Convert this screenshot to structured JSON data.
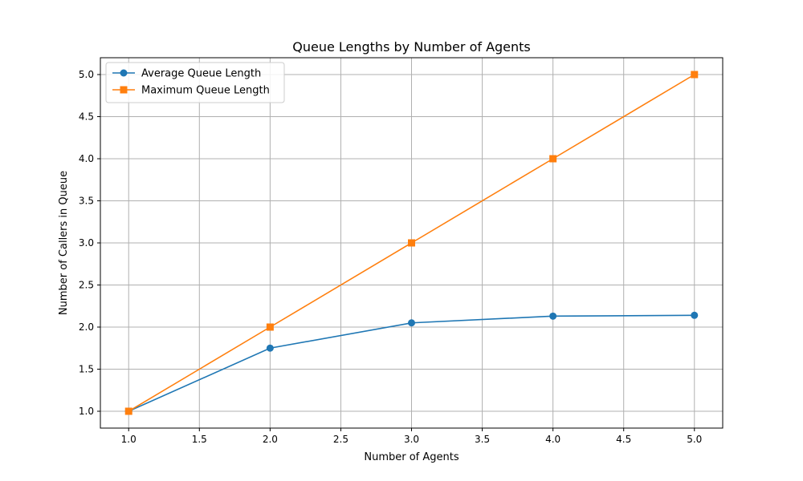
{
  "chart_data": {
    "type": "line",
    "title": "Queue Lengths by Number of Agents",
    "xlabel": "Number of Agents",
    "ylabel": "Number of Callers in Queue",
    "xlim": [
      0.8,
      5.2
    ],
    "ylim": [
      0.8,
      5.2
    ],
    "xticks": [
      "1.0",
      "1.5",
      "2.0",
      "2.5",
      "3.0",
      "3.5",
      "4.0",
      "4.5",
      "5.0"
    ],
    "yticks": [
      "1.0",
      "1.5",
      "2.0",
      "2.5",
      "3.0",
      "3.5",
      "4.0",
      "4.5",
      "5.0"
    ],
    "grid": true,
    "legend_position": "top-left",
    "x": [
      1,
      2,
      3,
      4,
      5
    ],
    "series": [
      {
        "name": "Average Queue Length",
        "values": [
          1.0,
          1.75,
          2.05,
          2.13,
          2.14
        ],
        "color": "#1f77b4",
        "marker": "circle"
      },
      {
        "name": "Maximum Queue Length",
        "values": [
          1.0,
          2.0,
          3.0,
          4.0,
          5.0
        ],
        "color": "#ff7f0e",
        "marker": "square"
      }
    ]
  }
}
